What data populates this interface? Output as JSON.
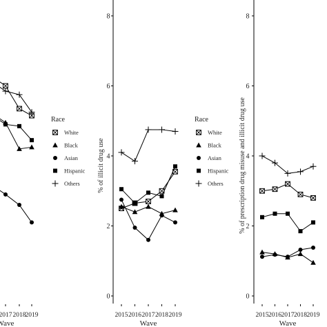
{
  "chart_data": [
    {
      "type": "line",
      "xlabel": "Wave",
      "ylabel": "",
      "categories": [
        "2017",
        "2018",
        "2019"
      ],
      "ylim": [
        0,
        8
      ],
      "y_ticks": [],
      "legend": {
        "title": "Race",
        "placement": "right",
        "entries": [
          "White",
          "Black",
          "Asian",
          "Hispanic",
          "Others"
        ]
      },
      "series": [
        {
          "name": "White",
          "marker": "square-x",
          "values": [
            6.0,
            5.35,
            5.15
          ]
        },
        {
          "name": "Black",
          "marker": "triangle",
          "values": [
            4.95,
            4.2,
            4.25
          ]
        },
        {
          "name": "Asian",
          "marker": "circle",
          "values": [
            2.9,
            2.6,
            2.1
          ]
        },
        {
          "name": "Hispanic",
          "marker": "square",
          "values": [
            4.9,
            4.85,
            4.45
          ]
        },
        {
          "name": "Others",
          "marker": "plus",
          "values": [
            5.85,
            5.75,
            5.25
          ]
        }
      ]
    },
    {
      "type": "line",
      "xlabel": "Wave",
      "ylabel": "% of illicit drug use",
      "categories": [
        "2015",
        "2016",
        "2017",
        "2018",
        "2019"
      ],
      "ylim": [
        0,
        8
      ],
      "y_ticks": [
        "0",
        "2",
        "4",
        "6",
        "8"
      ],
      "legend": {
        "title": "Race",
        "placement": "right",
        "entries": [
          "White",
          "Black",
          "Asian",
          "Hispanic",
          "Others"
        ]
      },
      "series": [
        {
          "name": "White",
          "marker": "square-x",
          "values": [
            2.5,
            2.65,
            2.7,
            3.0,
            3.55
          ]
        },
        {
          "name": "Black",
          "marker": "triangle",
          "values": [
            2.55,
            2.4,
            2.55,
            2.35,
            2.45
          ]
        },
        {
          "name": "Asian",
          "marker": "circle",
          "values": [
            2.75,
            1.95,
            1.6,
            2.3,
            2.1
          ]
        },
        {
          "name": "Hispanic",
          "marker": "square",
          "values": [
            3.05,
            2.65,
            2.95,
            2.85,
            3.7
          ]
        },
        {
          "name": "Others",
          "marker": "plus",
          "values": [
            4.1,
            3.85,
            4.75,
            4.75,
            4.7
          ]
        }
      ]
    },
    {
      "type": "line",
      "xlabel": "Wave",
      "ylabel": "% of prescription drug misuse and illicit drug use",
      "categories": [
        "2015",
        "2016",
        "2017",
        "2018",
        "2019"
      ],
      "ylim": [
        0,
        8
      ],
      "y_ticks": [
        "0",
        "2",
        "4",
        "6",
        "8"
      ],
      "legend": null,
      "series": [
        {
          "name": "White",
          "marker": "square-x",
          "values": [
            3.0,
            3.05,
            3.2,
            2.9,
            2.8
          ]
        },
        {
          "name": "Black",
          "marker": "triangle",
          "values": [
            1.25,
            1.2,
            1.1,
            1.2,
            0.95
          ]
        },
        {
          "name": "Asian",
          "marker": "circle",
          "values": [
            1.12,
            1.18,
            1.12,
            1.32,
            1.38
          ]
        },
        {
          "name": "Hispanic",
          "marker": "square",
          "values": [
            2.25,
            2.35,
            2.35,
            1.85,
            2.1
          ]
        },
        {
          "name": "Others",
          "marker": "plus",
          "values": [
            4.0,
            3.8,
            3.5,
            3.55,
            3.7
          ]
        }
      ]
    }
  ]
}
